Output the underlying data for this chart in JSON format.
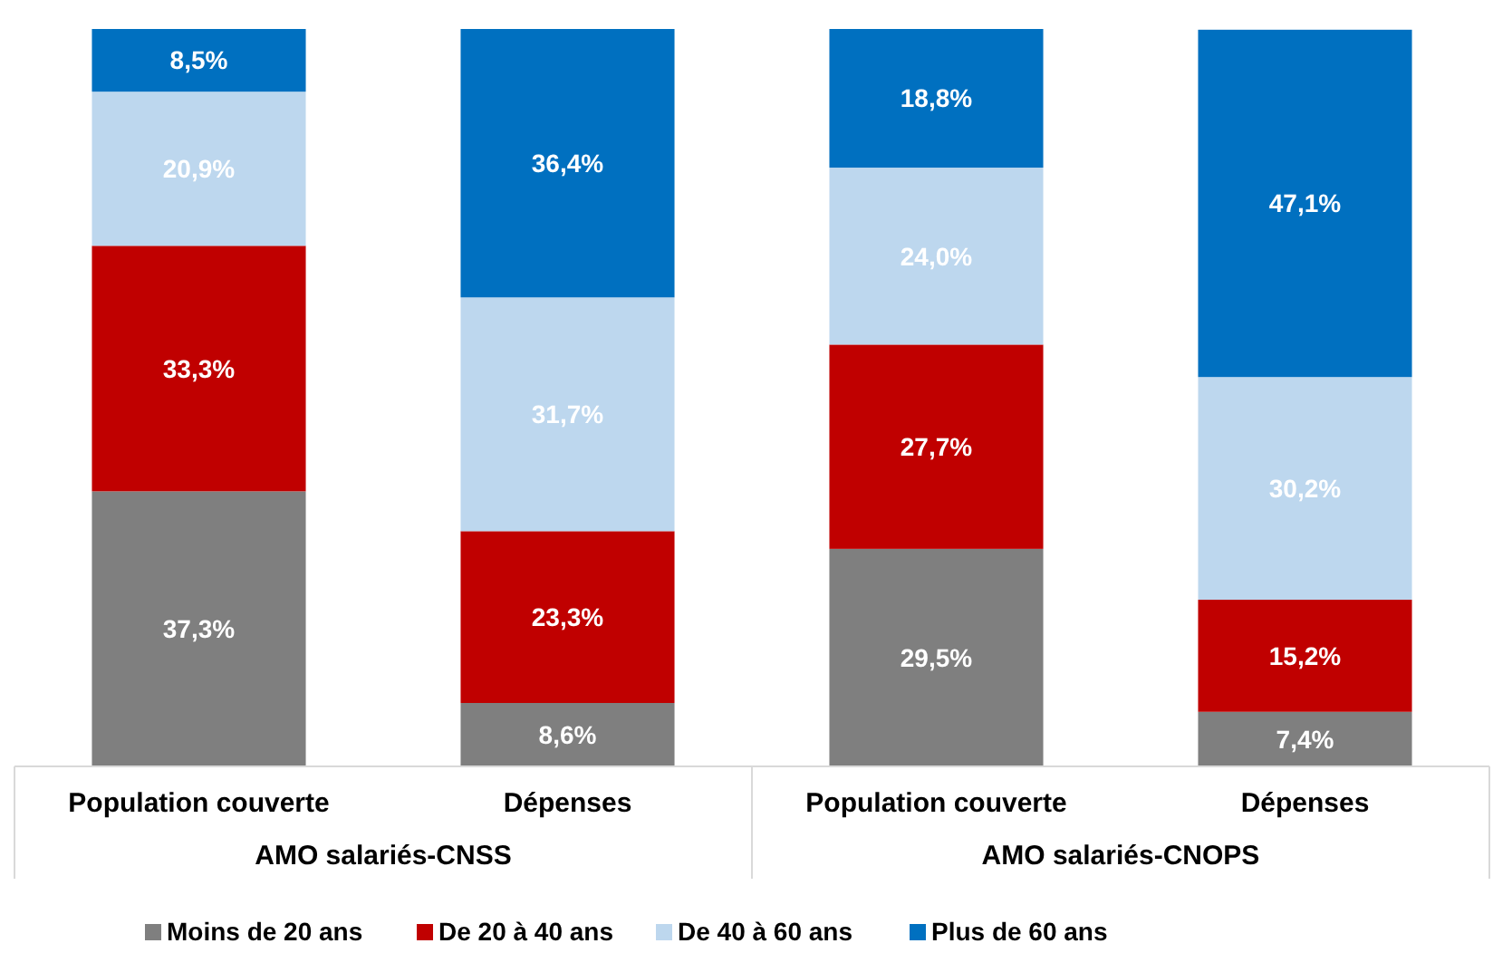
{
  "chart_data": {
    "type": "bar",
    "stacked": true,
    "categories": [
      "Population couverte",
      "Dépenses",
      "Population couverte",
      "Dépenses"
    ],
    "annotations": [
      "AMO salariés-CNSS",
      "AMO salariés-CNOPS"
    ],
    "legend": "bottom",
    "series": [
      {
        "name": "Moins de 20 ans",
        "color": "#7f7f7f",
        "values": [
          37.3,
          8.6,
          29.5,
          7.4
        ],
        "value_labels": [
          "37,3%",
          "8,6%",
          "29,5%",
          "7,4%"
        ]
      },
      {
        "name": "De 20 à 40 ans",
        "color": "#c00000",
        "values": [
          33.3,
          23.3,
          27.7,
          15.2
        ],
        "value_labels": [
          "33,3%",
          "23,3%",
          "27,7%",
          "15,2%"
        ]
      },
      {
        "name": "De 40 à 60 ans",
        "color": "#bdd7ee",
        "values": [
          20.9,
          31.7,
          24.0,
          30.2
        ],
        "value_labels": [
          "20,9%",
          "31,7%",
          "24,0%",
          "30,2%"
        ]
      },
      {
        "name": "Plus de 60 ans",
        "color": "#0070c0",
        "values": [
          8.5,
          36.4,
          18.8,
          47.1
        ],
        "value_labels": [
          "8,5%",
          "36,4%",
          "18,8%",
          "47,1%"
        ]
      }
    ]
  }
}
